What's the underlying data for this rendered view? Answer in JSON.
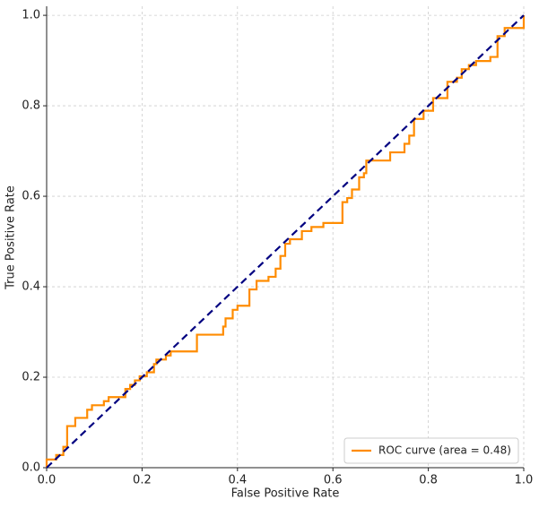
{
  "chart_data": {
    "type": "line",
    "xlabel": "False Positive Rate",
    "ylabel": "True Positive Rate",
    "xlim": [
      0,
      1
    ],
    "ylim": [
      0,
      1.02
    ],
    "xticks": [
      {
        "value": 0,
        "label": "0.0"
      },
      0.2,
      0.4,
      0.6,
      0.8,
      {
        "value": 1,
        "label": "1.0"
      }
    ],
    "yticks": [
      {
        "value": 0,
        "label": "0.0"
      },
      0.2,
      0.4,
      0.6,
      0.8,
      {
        "value": 1,
        "label": "1.0"
      }
    ],
    "grid": true,
    "legend": "lower right",
    "series": [
      {
        "name": "ROC curve (area = 0.48)",
        "color": "#ff8c00",
        "dashed": false,
        "x": [
          0,
          0,
          0.02,
          0.02,
          0.035,
          0.035,
          0.043,
          0.043,
          0.06,
          0.06,
          0.085,
          0.085,
          0.095,
          0.095,
          0.12,
          0.12,
          0.13,
          0.13,
          0.165,
          0.165,
          0.175,
          0.175,
          0.185,
          0.185,
          0.195,
          0.195,
          0.21,
          0.21,
          0.225,
          0.225,
          0.23,
          0.23,
          0.25,
          0.25,
          0.26,
          0.26,
          0.315,
          0.315,
          0.37,
          0.37,
          0.375,
          0.375,
          0.39,
          0.39,
          0.4,
          0.4,
          0.425,
          0.425,
          0.44,
          0.44,
          0.465,
          0.465,
          0.48,
          0.48,
          0.49,
          0.49,
          0.5,
          0.5,
          0.51,
          0.51,
          0.535,
          0.535,
          0.555,
          0.555,
          0.58,
          0.58,
          0.62,
          0.62,
          0.63,
          0.63,
          0.64,
          0.64,
          0.655,
          0.655,
          0.665,
          0.665,
          0.67,
          0.67,
          0.72,
          0.72,
          0.75,
          0.75,
          0.76,
          0.76,
          0.77,
          0.77,
          0.79,
          0.79,
          0.81,
          0.81,
          0.84,
          0.84,
          0.86,
          0.86,
          0.87,
          0.87,
          0.885,
          0.885,
          0.9,
          0.9,
          0.93,
          0.93,
          0.945,
          0.945,
          0.96,
          0.96,
          1,
          1
        ],
        "y": [
          0,
          0.018,
          0.018,
          0.028,
          0.028,
          0.046,
          0.046,
          0.092,
          0.092,
          0.11,
          0.11,
          0.128,
          0.128,
          0.138,
          0.138,
          0.147,
          0.147,
          0.156,
          0.156,
          0.174,
          0.174,
          0.183,
          0.183,
          0.193,
          0.193,
          0.202,
          0.202,
          0.211,
          0.211,
          0.229,
          0.229,
          0.239,
          0.239,
          0.248,
          0.248,
          0.257,
          0.257,
          0.294,
          0.294,
          0.312,
          0.312,
          0.33,
          0.33,
          0.349,
          0.349,
          0.358,
          0.358,
          0.394,
          0.394,
          0.413,
          0.413,
          0.422,
          0.422,
          0.44,
          0.44,
          0.468,
          0.468,
          0.495,
          0.495,
          0.505,
          0.505,
          0.523,
          0.523,
          0.532,
          0.532,
          0.541,
          0.541,
          0.587,
          0.587,
          0.596,
          0.596,
          0.615,
          0.615,
          0.642,
          0.642,
          0.651,
          0.651,
          0.679,
          0.679,
          0.697,
          0.697,
          0.716,
          0.716,
          0.734,
          0.734,
          0.771,
          0.771,
          0.789,
          0.789,
          0.817,
          0.817,
          0.853,
          0.853,
          0.862,
          0.862,
          0.881,
          0.881,
          0.89,
          0.89,
          0.899,
          0.899,
          0.908,
          0.908,
          0.954,
          0.954,
          0.972,
          0.972,
          1
        ]
      },
      {
        "color": "#000080",
        "dashed": true,
        "x": [
          0,
          1
        ],
        "y": [
          0,
          1
        ]
      }
    ]
  }
}
